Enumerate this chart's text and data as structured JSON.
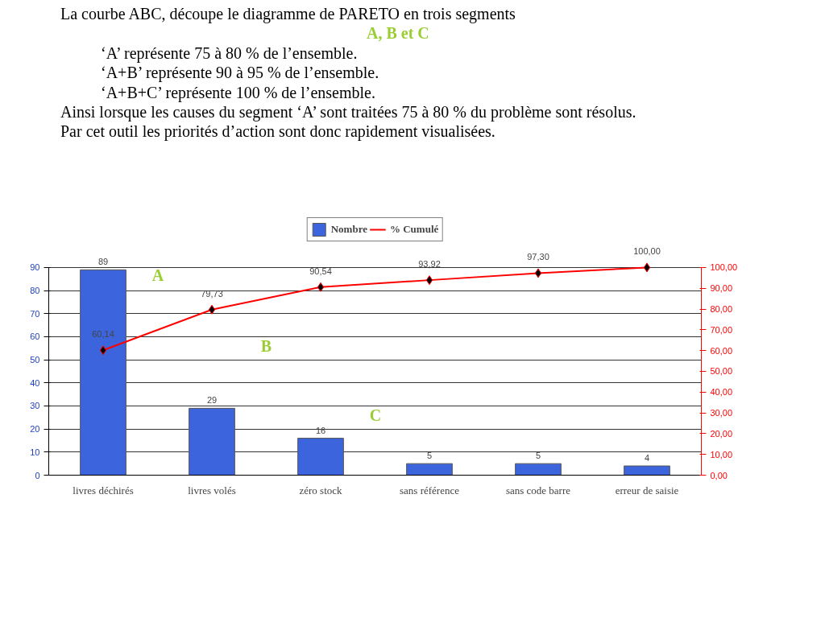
{
  "chart_data": {
    "type": "bar",
    "title": "La courbe ABC, découpe le diagramme de PARETO en trois segments",
    "subtitle": "A, B et C",
    "categories": [
      "livres déchirés",
      "livres volés",
      "zéro stock",
      "sans référence",
      "sans code barre",
      "erreur de saisie"
    ],
    "series": [
      {
        "name": "Nombre",
        "color": "#3c64dc",
        "values": [
          89,
          29,
          16,
          5,
          5,
          4
        ]
      },
      {
        "name": "% Cumulé",
        "type": "line",
        "axis": "y2",
        "color": "#ff0000",
        "marker": "diamond",
        "values": [
          60.14,
          79.73,
          90.54,
          93.92,
          97.3,
          100.0
        ],
        "value_labels": [
          "60,14",
          "79,73",
          "90,54",
          "93,92",
          "97,30",
          "100,00"
        ]
      }
    ],
    "data_labels": true,
    "ylim": [
      0,
      90
    ],
    "yticks": [
      0,
      10,
      20,
      30,
      40,
      50,
      60,
      70,
      80,
      90
    ],
    "y2lim": [
      0,
      100
    ],
    "y2ticks": [
      {
        "value": 0,
        "label": "0,00"
      },
      {
        "value": 10,
        "label": "10,00"
      },
      {
        "value": 20,
        "label": "20,00"
      },
      {
        "value": 30,
        "label": "30,00"
      },
      {
        "value": 40,
        "label": "40,00"
      },
      {
        "value": 50,
        "label": "50,00"
      },
      {
        "value": 60,
        "label": "60,00"
      },
      {
        "value": 70,
        "label": "70,00"
      },
      {
        "value": 80,
        "label": "80,00"
      },
      {
        "value": 90,
        "label": "90,00"
      },
      {
        "value": 100,
        "label": "100,00"
      }
    ],
    "grid": "y",
    "legend": "top",
    "annotations": [
      "‘A’ représente 75 à 80 % de l’ensemble.",
      "‘A+B’ représente 90 à 95 % de l’ensemble.",
      "‘A+B+C’ représente 100 % de l’ensemble.",
      "Ainsi lorsque les causes du segment ‘A’ sont traitées 75 à 80 % du problème sont résolus.",
      "Par cet outil les priorités d’action sont donc rapidement visualisées.",
      "A",
      "B",
      "C"
    ]
  }
}
